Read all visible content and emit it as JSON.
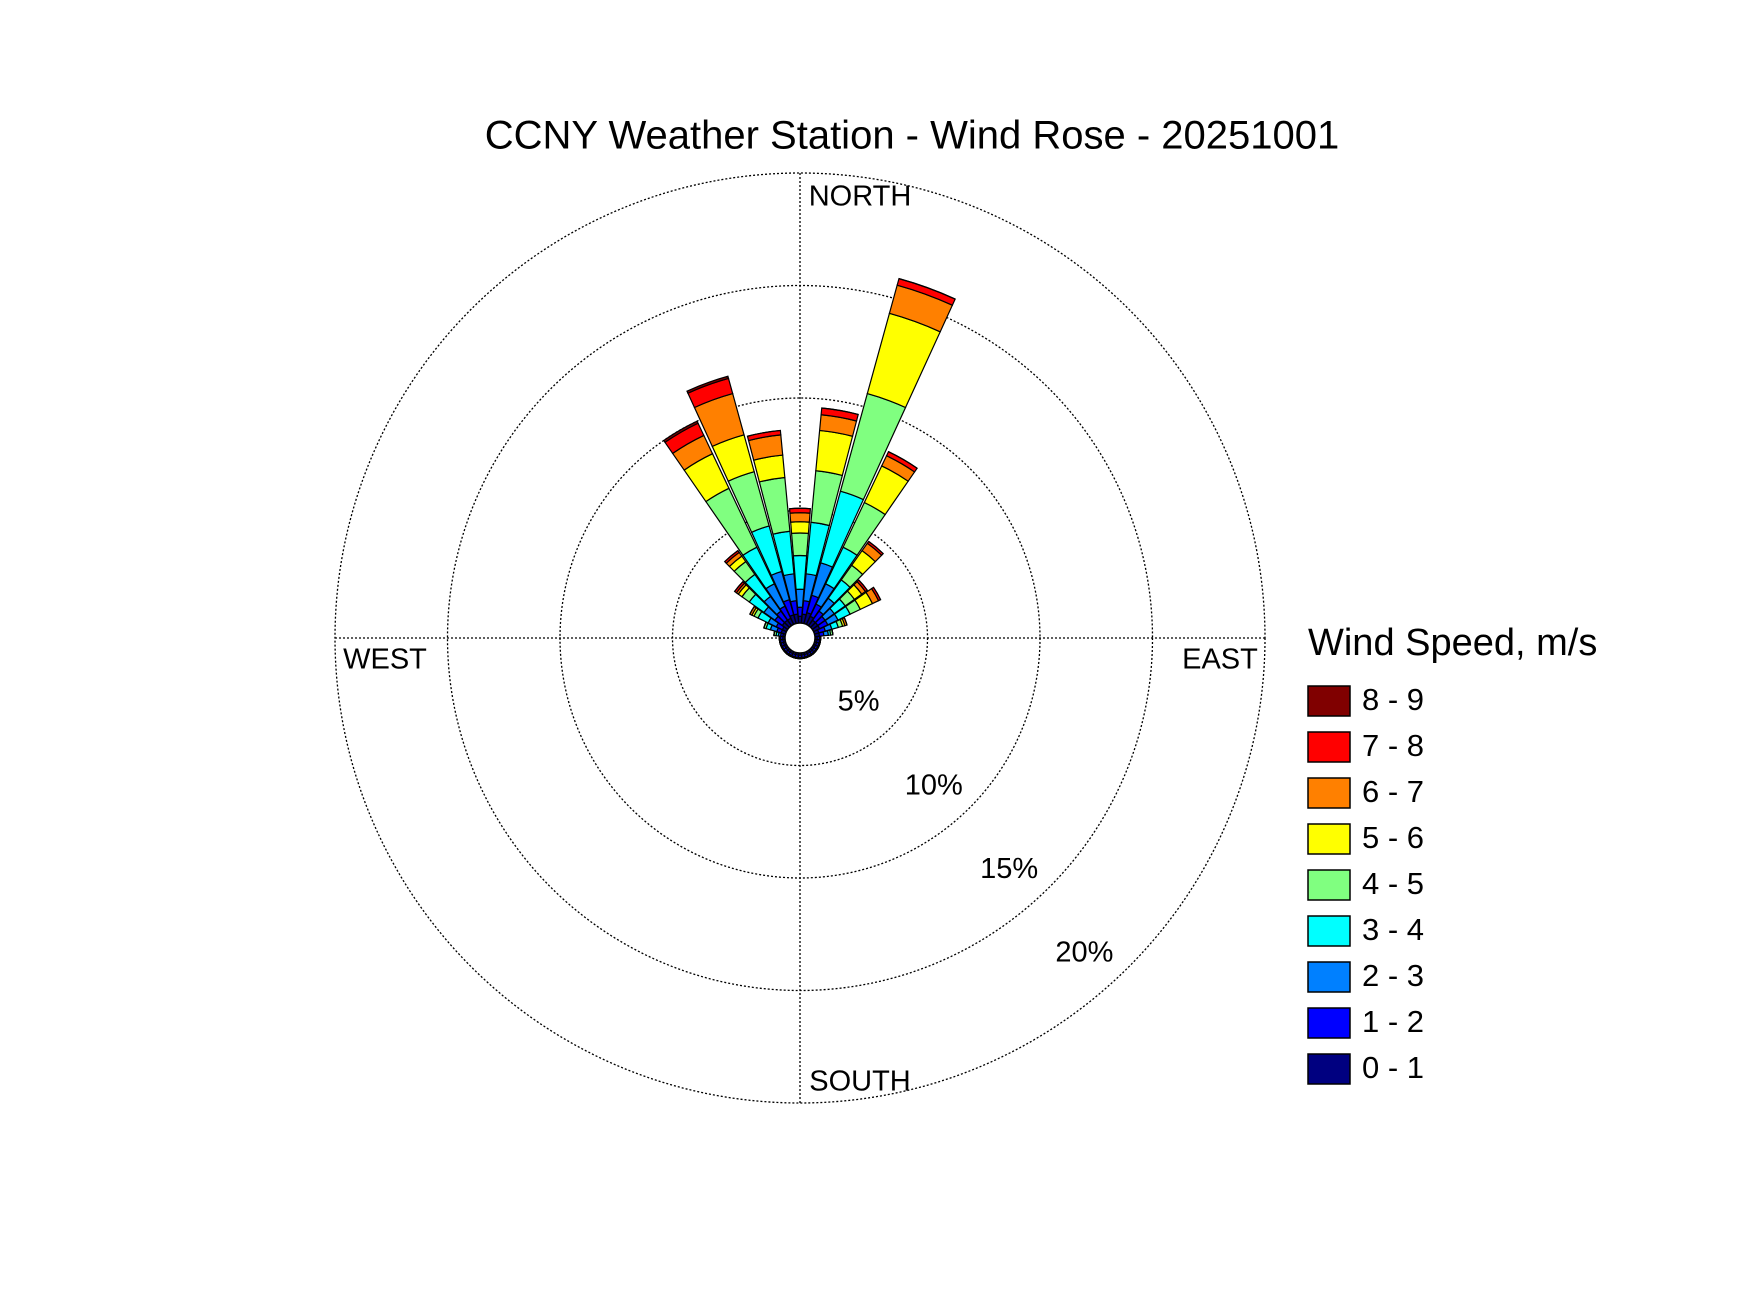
{
  "chart_data": {
    "type": "windrose",
    "title": "CCNY Weather Station - Wind Rose - 20251001",
    "compass": {
      "north": "NORTH",
      "east": "EAST",
      "south": "SOUTH",
      "west": "WEST"
    },
    "legend_title": "Wind Speed, m/s",
    "x": [
      0,
      10,
      20,
      30,
      40,
      50,
      60,
      70,
      80,
      90,
      100,
      110,
      120,
      130,
      140,
      150,
      160,
      170,
      180,
      190,
      200,
      210,
      220,
      230,
      240,
      250,
      260,
      270,
      280,
      290,
      300,
      310,
      320,
      330,
      340,
      350
    ],
    "rlim": [
      0,
      20
    ],
    "rticks": [
      {
        "value": 5,
        "label": "5%"
      },
      {
        "value": 10,
        "label": "10%"
      },
      {
        "value": 15,
        "label": "15%"
      },
      {
        "value": 20,
        "label": "20%"
      }
    ],
    "series": [
      {
        "name": "0 - 1",
        "color": "#000080",
        "values": [
          0.3,
          0.4,
          0.5,
          0.4,
          0.3,
          0.3,
          0.3,
          0.2,
          0.2,
          0.1,
          0.1,
          0.1,
          0.1,
          0.1,
          0.1,
          0.1,
          0.1,
          0.1,
          0.1,
          0.1,
          0.1,
          0.1,
          0.1,
          0.1,
          0.1,
          0.1,
          0.1,
          0.1,
          0.1,
          0.2,
          0.2,
          0.3,
          0.3,
          0.3,
          0.4,
          0.4
        ]
      },
      {
        "name": "1 - 2",
        "color": "#0000ff",
        "values": [
          0.4,
          0.6,
          0.8,
          0.6,
          0.5,
          0.4,
          0.4,
          0.3,
          0.2,
          0.1,
          0.1,
          0.1,
          0.1,
          0.1,
          0.1,
          0.1,
          0.1,
          0.1,
          0.1,
          0.1,
          0.1,
          0.1,
          0.1,
          0.1,
          0.1,
          0.1,
          0.1,
          0.1,
          0.1,
          0.2,
          0.3,
          0.4,
          0.5,
          0.6,
          0.7,
          0.6
        ]
      },
      {
        "name": "2 - 3",
        "color": "#0080ff",
        "values": [
          0.8,
          1.2,
          1.5,
          1.0,
          0.7,
          0.5,
          0.5,
          0.3,
          0.2,
          0.05,
          0.05,
          0.05,
          0.05,
          0.05,
          0.05,
          0.05,
          0.05,
          0.05,
          0.05,
          0.05,
          0.05,
          0.05,
          0.05,
          0.05,
          0.05,
          0.05,
          0.05,
          0.05,
          0.1,
          0.3,
          0.4,
          0.6,
          0.8,
          1.1,
          1.3,
          1.2
        ]
      },
      {
        "name": "3 - 4",
        "color": "#00ffff",
        "values": [
          1.5,
          2.3,
          3.3,
          1.8,
          1.0,
          0.6,
          0.6,
          0.3,
          0.1,
          0,
          0,
          0,
          0,
          0,
          0,
          0,
          0,
          0,
          0,
          0,
          0,
          0,
          0,
          0,
          0,
          0,
          0,
          0,
          0.1,
          0.2,
          0.5,
          0.8,
          1.2,
          1.8,
          2.1,
          1.9
        ]
      },
      {
        "name": "4 - 5",
        "color": "#80ff80",
        "values": [
          1.0,
          2.3,
          4.5,
          2.2,
          0.8,
          0.5,
          0.5,
          0.2,
          0.1,
          0,
          0,
          0,
          0,
          0,
          0,
          0,
          0,
          0,
          0,
          0,
          0,
          0,
          0,
          0,
          0,
          0,
          0,
          0,
          0.1,
          0.1,
          0.2,
          0.4,
          0.7,
          2.9,
          2.5,
          2.4
        ]
      },
      {
        "name": "5 - 6",
        "color": "#ffff00",
        "values": [
          0.5,
          1.8,
          3.7,
          1.8,
          0.8,
          0.4,
          0.6,
          0.1,
          0,
          0,
          0,
          0,
          0,
          0,
          0,
          0,
          0,
          0,
          0,
          0,
          0,
          0,
          0,
          0,
          0,
          0,
          0,
          0,
          0,
          0,
          0.1,
          0.2,
          0.3,
          1.7,
          1.7,
          1.0
        ]
      },
      {
        "name": "6 - 7",
        "color": "#ff8000",
        "values": [
          0.4,
          0.7,
          1.3,
          0.5,
          0.4,
          0.2,
          0.3,
          0.1,
          0,
          0,
          0,
          0,
          0,
          0,
          0,
          0,
          0,
          0,
          0,
          0,
          0,
          0,
          0,
          0,
          0,
          0,
          0,
          0,
          0,
          0,
          0.1,
          0.1,
          0.2,
          0.9,
          1.9,
          0.9
        ]
      },
      {
        "name": "7 - 8",
        "color": "#ff0000",
        "values": [
          0.2,
          0.3,
          0.3,
          0.2,
          0.1,
          0.1,
          0.1,
          0,
          0,
          0,
          0,
          0,
          0,
          0,
          0,
          0,
          0,
          0,
          0,
          0,
          0,
          0,
          0,
          0,
          0,
          0,
          0,
          0,
          0,
          0,
          0,
          0.1,
          0.1,
          0.6,
          0.7,
          0.2
        ]
      },
      {
        "name": "8 - 9",
        "color": "#800000",
        "values": [
          0,
          0,
          0,
          0,
          0,
          0,
          0,
          0,
          0,
          0,
          0,
          0,
          0,
          0,
          0,
          0,
          0,
          0,
          0,
          0,
          0,
          0,
          0,
          0,
          0,
          0,
          0,
          0,
          0,
          0,
          0,
          0,
          0,
          0.1,
          0.1,
          0
        ]
      }
    ]
  }
}
